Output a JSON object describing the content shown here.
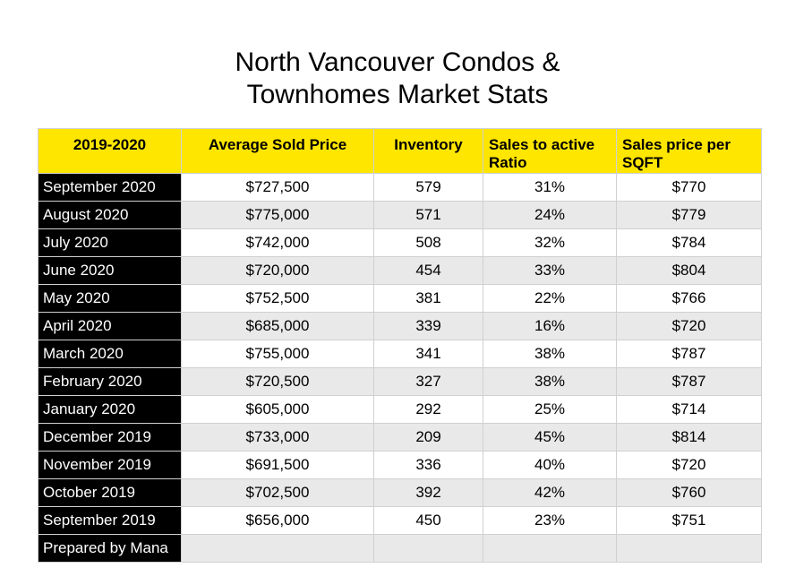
{
  "title_line1": "North Vancouver Condos &",
  "title_line2": "Townhomes Market Stats",
  "colors": {
    "header_bg": "#ffe600",
    "label_bg": "#000000",
    "alt_row": "#e9e9e9"
  },
  "chart_data": {
    "type": "table",
    "columns": [
      "2019-2020",
      "Average Sold Price",
      "Inventory",
      "Sales to active Ratio",
      "Sales price per SQFT"
    ],
    "rows": [
      [
        "September 2020",
        "$727,500",
        "579",
        "31%",
        "$770"
      ],
      [
        "August 2020",
        "$775,000",
        "571",
        "24%",
        "$779"
      ],
      [
        "July 2020",
        "$742,000",
        "508",
        "32%",
        "$784"
      ],
      [
        "June 2020",
        "$720,000",
        "454",
        "33%",
        "$804"
      ],
      [
        "May 2020",
        "$752,500",
        "381",
        "22%",
        "$766"
      ],
      [
        "April 2020",
        "$685,000",
        "339",
        "16%",
        "$720"
      ],
      [
        "March 2020",
        "$755,000",
        "341",
        "38%",
        "$787"
      ],
      [
        "February 2020",
        "$720,500",
        "327",
        "38%",
        "$787"
      ],
      [
        "January 2020",
        "$605,000",
        "292",
        "25%",
        "$714"
      ],
      [
        "December 2019",
        "$733,000",
        "209",
        "45%",
        "$814"
      ],
      [
        "November 2019",
        "$691,500",
        "336",
        "40%",
        "$720"
      ],
      [
        "October 2019",
        "$702,500",
        "392",
        "42%",
        "$760"
      ],
      [
        "September 2019",
        "$656,000",
        "450",
        "23%",
        "$751"
      ]
    ],
    "footer": "Prepared by Mana"
  }
}
